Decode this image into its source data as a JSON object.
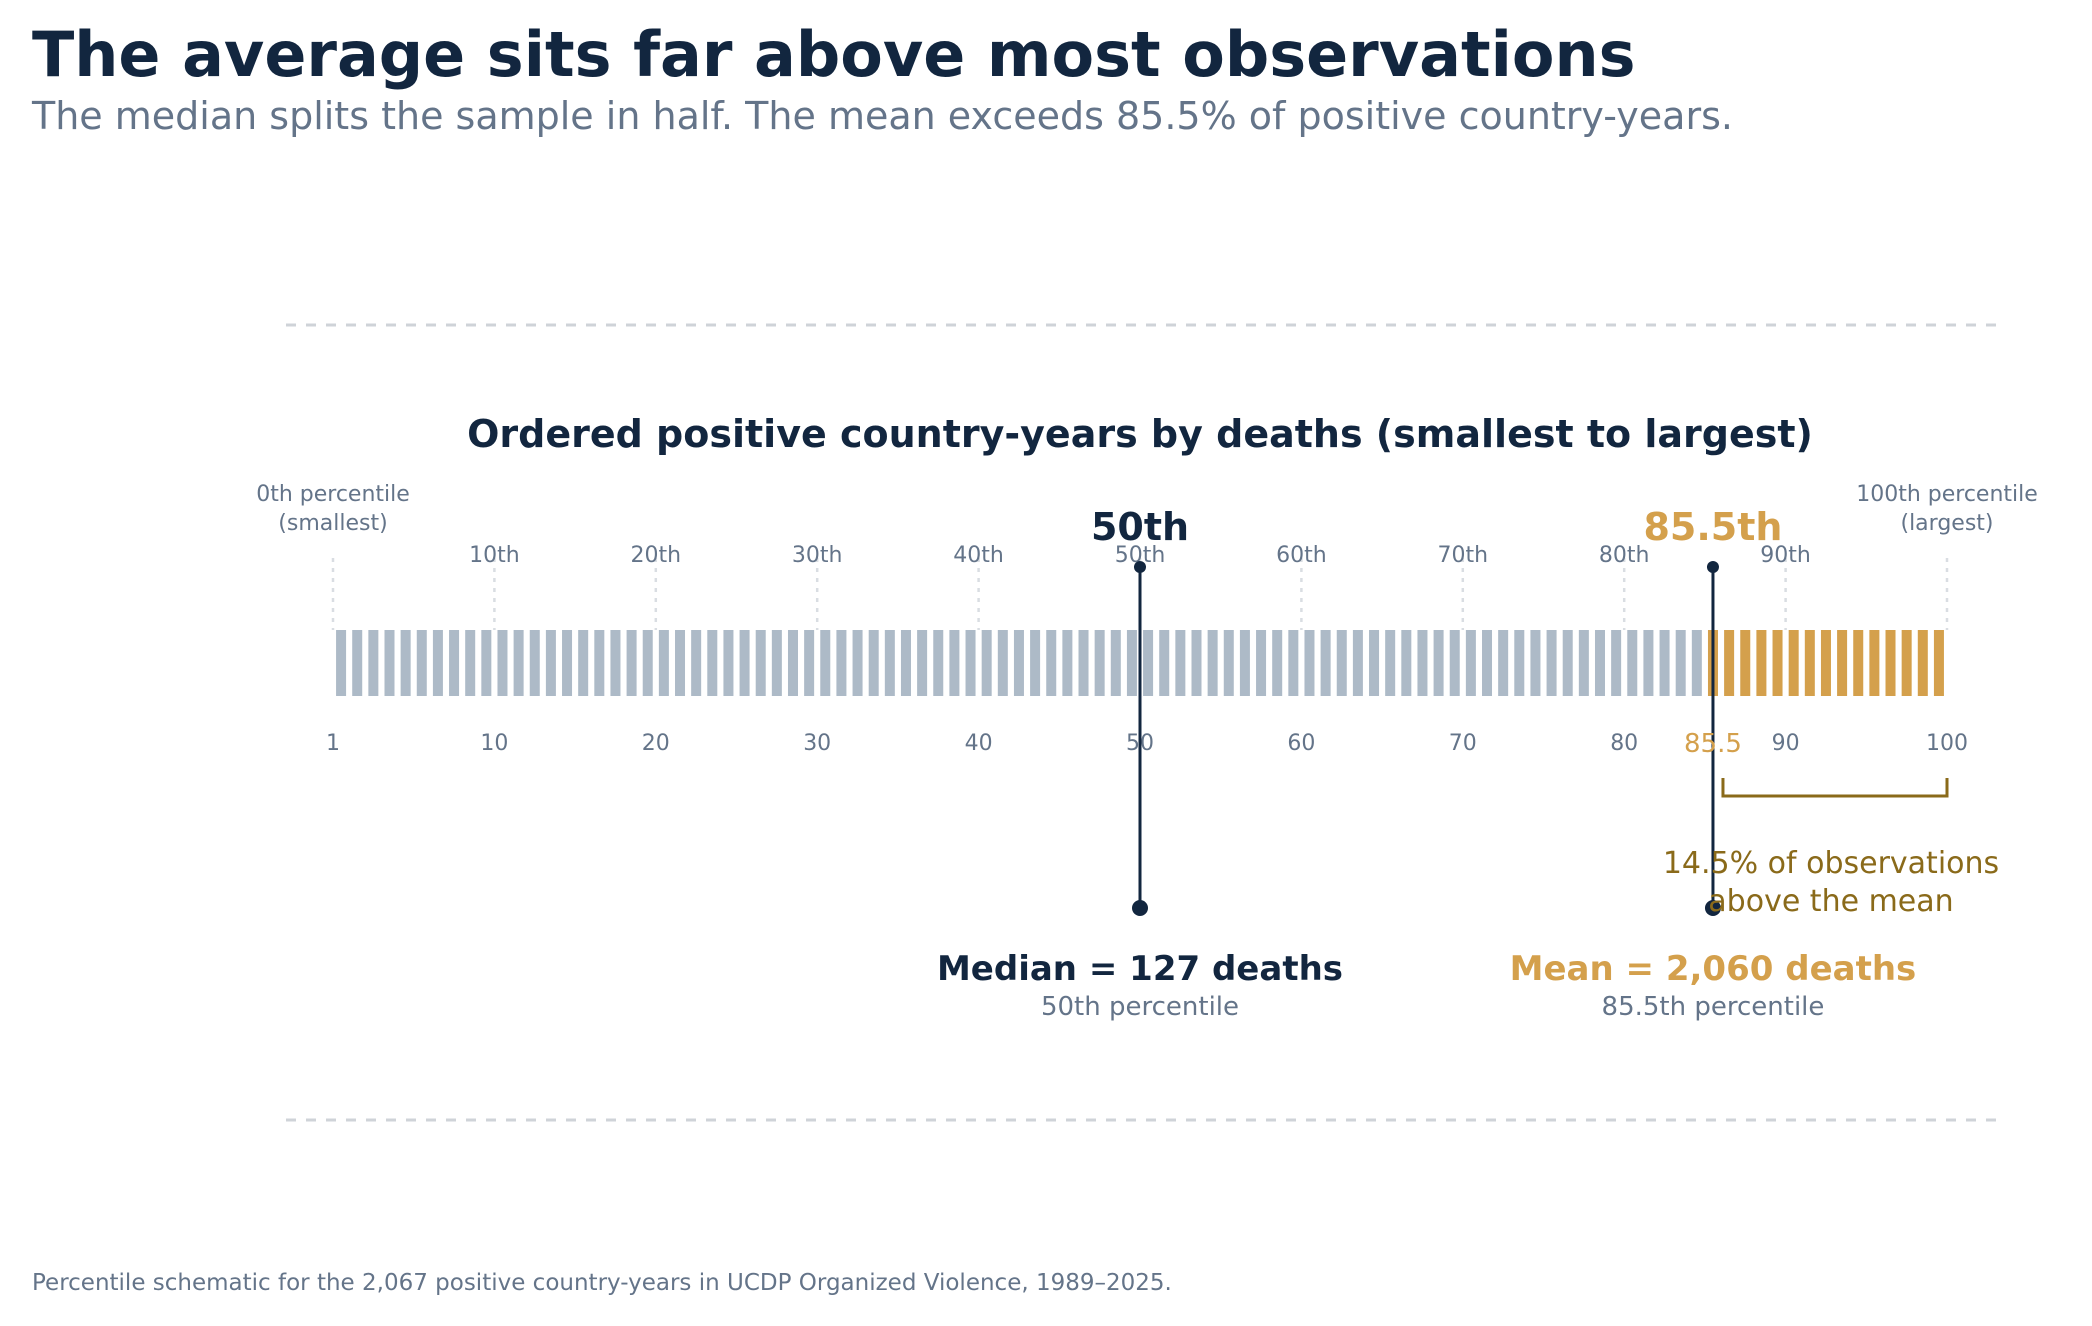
{
  "header": {
    "title": "The average sits far above most observations",
    "subtitle": "The median splits the sample in half. The mean exceeds 85.5% of positive country-years."
  },
  "footnote": "Percentile schematic for the 2,067 positive country-years in UCDP Organized Violence, 1989–2025.",
  "chart_data": {
    "type": "bar",
    "title": "Ordered positive country-years by deaths (smallest to largest)",
    "n_bars": 100,
    "end_labels": {
      "left": [
        "0th percentile",
        "(smallest)"
      ],
      "right": [
        "100th percentile",
        "(largest)"
      ]
    },
    "top_ticks": [
      {
        "value": 10,
        "label": "10th"
      },
      {
        "value": 20,
        "label": "20th"
      },
      {
        "value": 30,
        "label": "30th"
      },
      {
        "value": 40,
        "label": "40th"
      },
      {
        "value": 50,
        "label": "50th"
      },
      {
        "value": 60,
        "label": "60th"
      },
      {
        "value": 70,
        "label": "70th"
      },
      {
        "value": 80,
        "label": "80th"
      },
      {
        "value": 90,
        "label": "90th"
      }
    ],
    "bottom_ticks": [
      {
        "value": 1,
        "label": "1"
      },
      {
        "value": 10,
        "label": "10"
      },
      {
        "value": 20,
        "label": "20"
      },
      {
        "value": 30,
        "label": "30"
      },
      {
        "value": 40,
        "label": "40"
      },
      {
        "value": 50,
        "label": "50"
      },
      {
        "value": 60,
        "label": "60"
      },
      {
        "value": 70,
        "label": "70"
      },
      {
        "value": 80,
        "label": "80"
      },
      {
        "value": 90,
        "label": "90"
      },
      {
        "value": 100,
        "label": "100"
      }
    ],
    "median": {
      "percentile": 50,
      "top_label": "50th",
      "value_label": "Median = 127 deaths",
      "sub_label": "50th percentile"
    },
    "mean": {
      "percentile": 85.5,
      "top_label": "85.5th",
      "axis_label": "85.5",
      "value_label": "Mean = 2,060 deaths",
      "sub_label": "85.5th percentile"
    },
    "above_mean_annotation": [
      "14.5% of observations",
      "above the mean"
    ],
    "colors": {
      "below_mean_bar": "#adbac7",
      "above_mean_bar": "#d4a04c",
      "median_marker": "#12263f",
      "mean_label": "#d4a04c",
      "bracket": "#8a6a1a",
      "tick_text": "#647489",
      "title_text": "#12263f"
    }
  }
}
